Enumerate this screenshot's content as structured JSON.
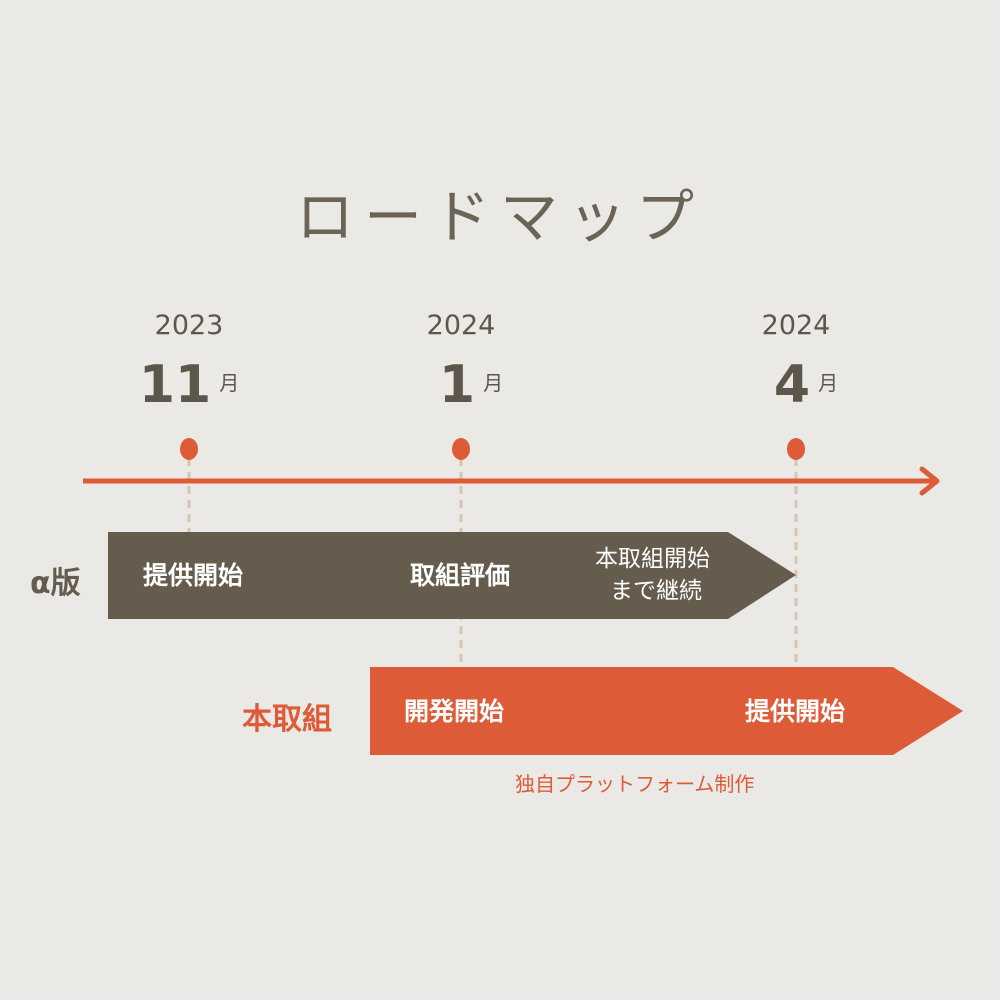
{
  "title": "ロードマップ",
  "milestones": [
    {
      "year": "2023",
      "month": "11",
      "unit": "月"
    },
    {
      "year": "2024",
      "month": "1",
      "unit": "月"
    },
    {
      "year": "2024",
      "month": "4",
      "unit": "月"
    }
  ],
  "rows": {
    "alpha": {
      "label": "α版",
      "items": [
        "提供開始",
        "取組評価",
        "本取組開始",
        "まで継続"
      ]
    },
    "main": {
      "label": "本取組",
      "items": [
        "開発開始",
        "提供開始"
      ],
      "note": "独自プラットフォーム制作"
    }
  },
  "colors": {
    "background": "#ebe9e6",
    "brown": "#655c4d",
    "orange": "#de5b38",
    "dash": "#d6c6ab"
  }
}
